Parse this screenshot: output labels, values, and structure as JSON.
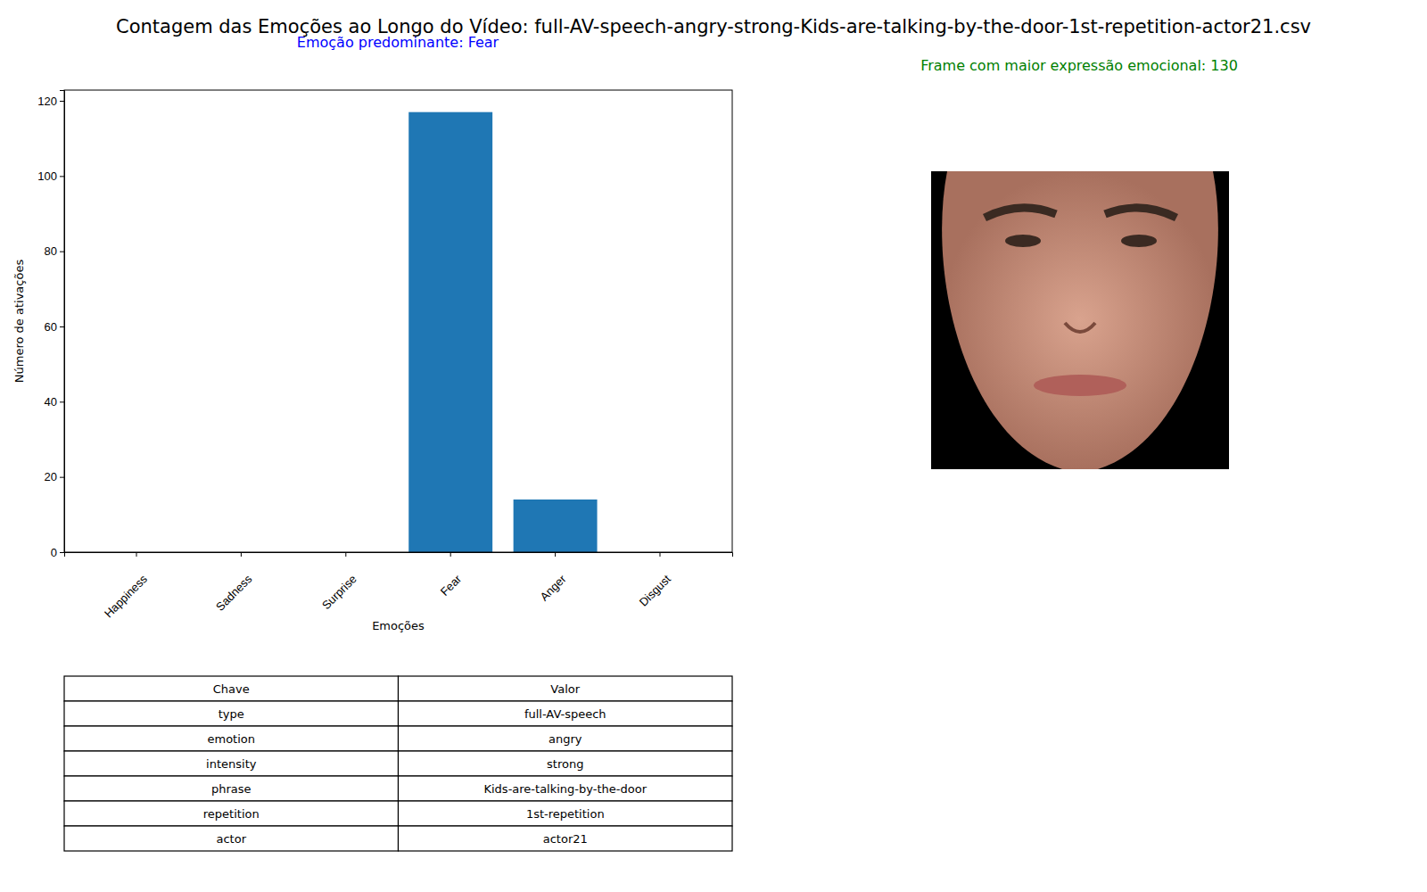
{
  "chart_data": {
    "type": "bar",
    "title": "Contagem das Emoções ao Longo do Vídeo: full-AV-speech-angry-strong-Kids-are-talking-by-the-door-1st-repetition-actor21.csv",
    "subtitle": "Emoção predominante: Fear",
    "annotation": "Frame com maior expressão emocional: 130",
    "x_label": "Emoções",
    "y_label": "Número de ativações",
    "categories": [
      "Happiness",
      "Sadness",
      "Surprise",
      "Fear",
      "Anger",
      "Disgust"
    ],
    "values": [
      0,
      0,
      0,
      117,
      14,
      0
    ],
    "color": "#1f77b4",
    "ylim": [
      0,
      122.85
    ],
    "yticks": [
      0,
      20,
      40,
      60,
      80,
      100,
      120
    ],
    "grid": false
  },
  "table": {
    "columns": [
      "Chave",
      "Valor"
    ],
    "rows": [
      [
        "type",
        "full-AV-speech"
      ],
      [
        "emotion",
        "angry"
      ],
      [
        "intensity",
        "strong"
      ],
      [
        "phrase",
        "Kids-are-talking-by-the-door"
      ],
      [
        "repetition",
        "1st-repetition"
      ],
      [
        "actor",
        "actor21"
      ]
    ]
  }
}
